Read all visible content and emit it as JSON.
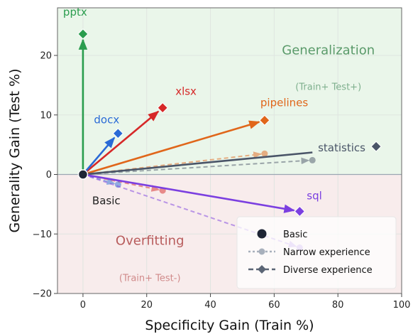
{
  "chart_data": {
    "type": "scatter",
    "xlabel": "Specificity Gain (Train %)",
    "ylabel": "Generality Gain (Test %)",
    "xlim": [
      -8,
      100
    ],
    "ylim": [
      -20,
      28
    ],
    "xticks": [
      0,
      20,
      40,
      60,
      80,
      100
    ],
    "yticks": [
      -20,
      -10,
      0,
      10,
      20
    ],
    "grid": true,
    "regions": [
      {
        "name": "Generalization",
        "sublabel": "(Train+ Test+)",
        "y_range": [
          0,
          28
        ],
        "color": "#eaf6ea",
        "text_color": "#5a9a6a"
      },
      {
        "name": "Overfitting",
        "sublabel": "(Train+ Test-)",
        "y_range": [
          -20,
          0
        ],
        "color": "#f8ecec",
        "text_color": "#b85c5c"
      }
    ],
    "origin": {
      "label": "Basic",
      "x": 0,
      "y": 0
    },
    "series": [
      {
        "name": "pptx",
        "color": "#2a9d4e",
        "diverse": {
          "x": 0,
          "y": 23.6
        },
        "narrow": null
      },
      {
        "name": "xlsx",
        "color": "#d62828",
        "diverse": {
          "x": 25,
          "y": 11.2
        },
        "narrow": {
          "x": 25,
          "y": -2.7
        }
      },
      {
        "name": "docx",
        "color": "#2a6ad6",
        "diverse": {
          "x": 11,
          "y": 6.9
        },
        "narrow": {
          "x": 11,
          "y": -1.7
        }
      },
      {
        "name": "pipelines",
        "color": "#e0661a",
        "diverse": {
          "x": 57,
          "y": 9.1
        },
        "narrow": {
          "x": 57,
          "y": 3.5
        }
      },
      {
        "name": "statistics",
        "color": "#4a5568",
        "diverse": {
          "x": 92,
          "y": 4.7
        },
        "narrow": {
          "x": 72,
          "y": 2.4
        }
      },
      {
        "name": "sql",
        "color": "#7b3fe0",
        "diverse": {
          "x": 68,
          "y": -6.2
        },
        "narrow": {
          "x": 68,
          "y": -12.3
        }
      }
    ],
    "legend": {
      "position": "bottom-right",
      "entries": [
        {
          "label": "Basic",
          "kind": "origin"
        },
        {
          "label": "Narrow experience",
          "kind": "narrow"
        },
        {
          "label": "Diverse experience",
          "kind": "diverse"
        }
      ]
    }
  }
}
